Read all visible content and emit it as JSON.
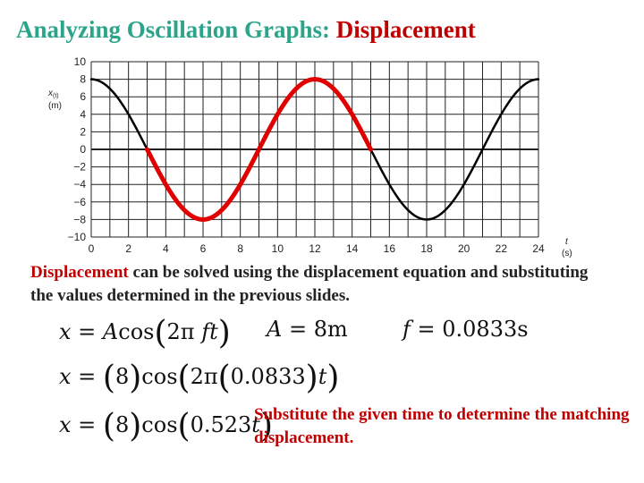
{
  "slide": {
    "title_prefix": "Analyzing Oscillation Graphs:",
    "title_highlight": "Displacement",
    "desc_highlight": "Displacement",
    "desc_rest": " can be solved using the displacement equation and substituting the values determined in the previous slides.",
    "note": "Substitute the given time to determine the matching displacement."
  },
  "equations": {
    "eq1": "x = Acos(2π ft)",
    "eq1_parts": {
      "lhs": "x",
      "eq": " = ",
      "A": "A",
      "cos": "cos",
      "two_pi": "2π ",
      "f": "f",
      "t": "t"
    },
    "amp_parts": {
      "A": "A",
      "eq": " = 8m"
    },
    "freq_parts": {
      "f": "f",
      "eq": " = 0.0833s"
    },
    "eq2_parts": {
      "lhs": "x",
      "eq": " = ",
      "amp": "8",
      "cos": "cos",
      "two_pi": "2π",
      "freq": "0.0833",
      "t": "t"
    },
    "eq3_parts": {
      "lhs": "x",
      "eq": " = ",
      "amp": "8",
      "cos": "cos",
      "omega": "0.523",
      "t": "t"
    }
  },
  "chart_data": {
    "type": "line",
    "ylabel_main": "x",
    "ylabel_sub": "(t)",
    "ylabel_unit": "(m)",
    "xlabel_main": "t",
    "xlabel_unit": "(s)",
    "xlim": [
      0,
      24
    ],
    "ylim": [
      -10,
      10
    ],
    "x_ticks": [
      0,
      2,
      4,
      6,
      8,
      10,
      12,
      14,
      16,
      18,
      20,
      22,
      24
    ],
    "y_ticks": [
      10,
      8,
      6,
      4,
      2,
      0,
      -2,
      -4,
      -6,
      -8,
      -10
    ],
    "grid": true,
    "series": [
      {
        "amplitude": 8,
        "period": 12,
        "t_start": 0,
        "t_end": 24,
        "color": "#000000"
      },
      {
        "amplitude": 8,
        "period": 12,
        "t_start": 3,
        "t_end": 15,
        "color": "#e00000",
        "highlight": true
      }
    ]
  },
  "colors": {
    "title_green": "#2ba58a",
    "accent_red": "#c00000",
    "curve_red": "#e00000"
  }
}
